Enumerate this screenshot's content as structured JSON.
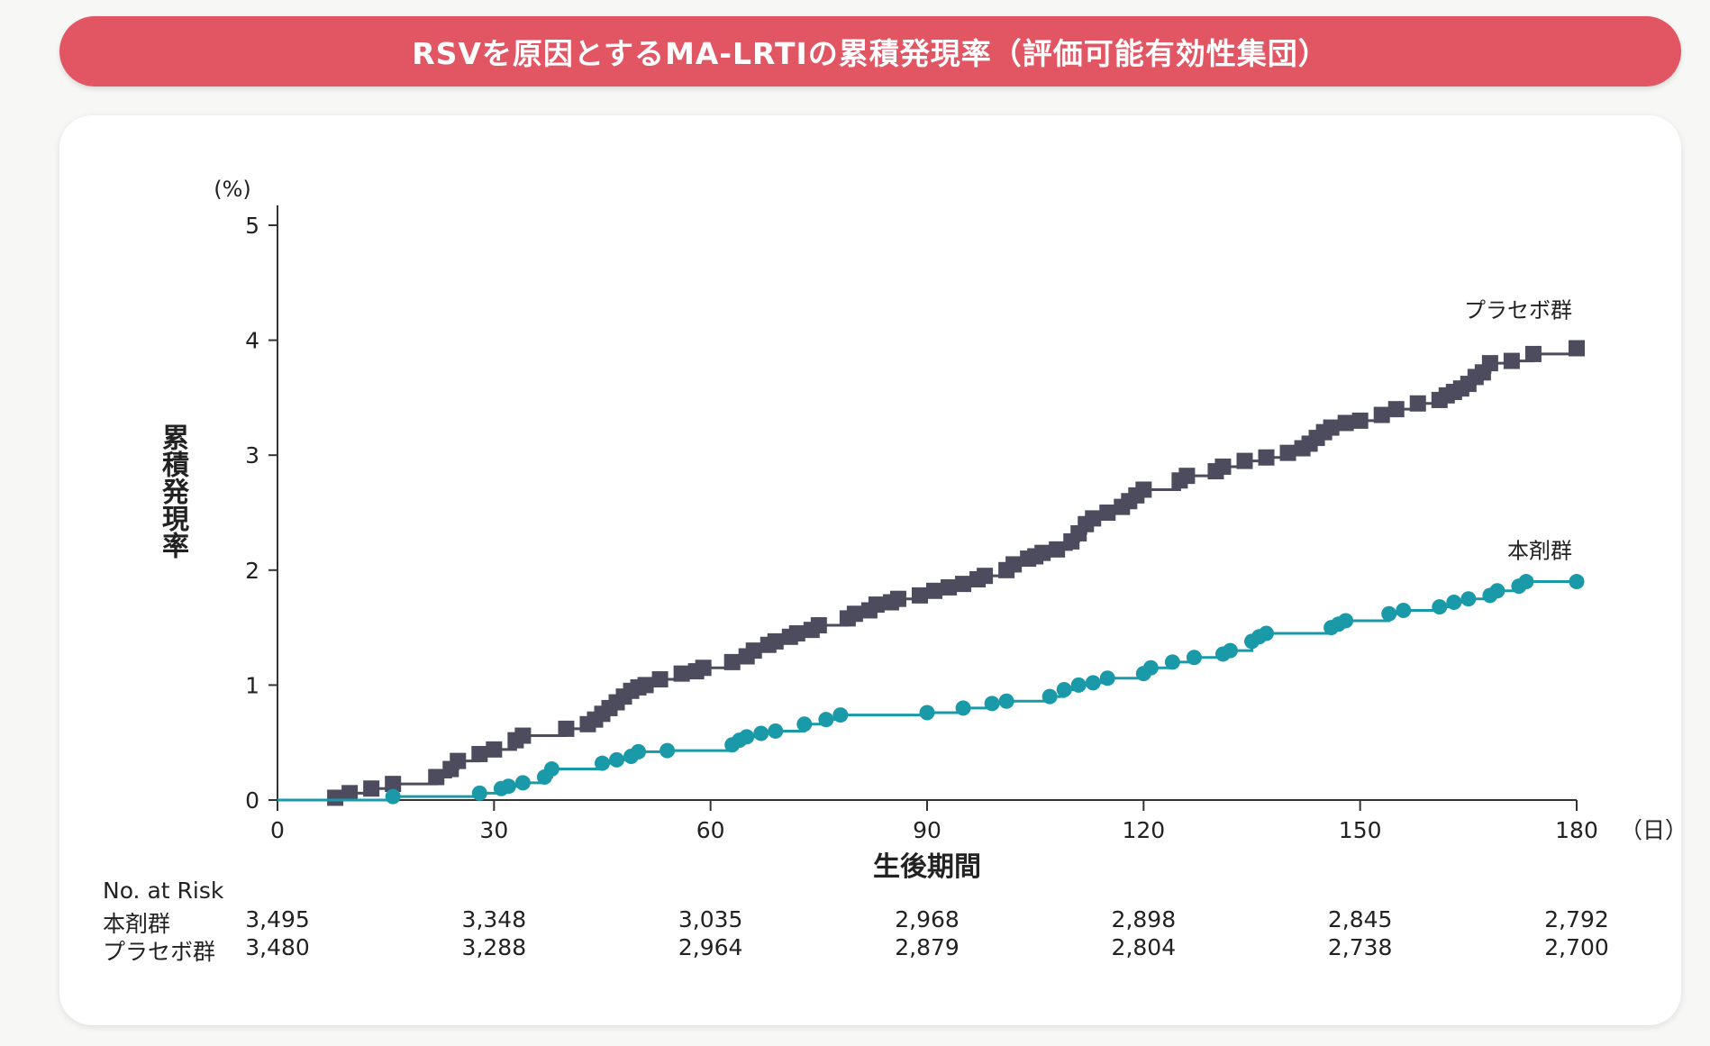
{
  "header": {
    "title": "RSVを原因とするMA-LRTIの累積発現率（評価可能有効性集団）"
  },
  "colors": {
    "banner": "#e25563",
    "treatment": "#1a9aa8",
    "placebo": "#4d4b5e",
    "axis": "#333333"
  },
  "chart_data": {
    "type": "line",
    "title": "RSVを原因とするMA-LRTIの累積発現率（評価可能有効性集団）",
    "xlabel": "生後期間",
    "xunit": "（日）",
    "ylabel": "累積発現率",
    "yunit": "(%)",
    "xlim": [
      0,
      180
    ],
    "ylim": [
      0,
      5
    ],
    "xticks": [
      0,
      30,
      60,
      90,
      120,
      150,
      180
    ],
    "yticks": [
      0,
      1,
      2,
      3,
      4,
      5
    ],
    "grid": false,
    "series": [
      {
        "name": "プラセボ群",
        "marker": "square",
        "points": [
          [
            8,
            0.02
          ],
          [
            10,
            0.06
          ],
          [
            13,
            0.1
          ],
          [
            16,
            0.14
          ],
          [
            22,
            0.2
          ],
          [
            24,
            0.27
          ],
          [
            25,
            0.34
          ],
          [
            28,
            0.4
          ],
          [
            30,
            0.44
          ],
          [
            33,
            0.52
          ],
          [
            34,
            0.56
          ],
          [
            40,
            0.62
          ],
          [
            43,
            0.66
          ],
          [
            44,
            0.7
          ],
          [
            45,
            0.75
          ],
          [
            46,
            0.8
          ],
          [
            47,
            0.85
          ],
          [
            48,
            0.9
          ],
          [
            49,
            0.95
          ],
          [
            50,
            0.98
          ],
          [
            51,
            1.0
          ],
          [
            53,
            1.05
          ],
          [
            56,
            1.1
          ],
          [
            58,
            1.12
          ],
          [
            59,
            1.15
          ],
          [
            63,
            1.2
          ],
          [
            65,
            1.25
          ],
          [
            66,
            1.3
          ],
          [
            68,
            1.35
          ],
          [
            69,
            1.38
          ],
          [
            71,
            1.42
          ],
          [
            72,
            1.45
          ],
          [
            74,
            1.48
          ],
          [
            75,
            1.52
          ],
          [
            79,
            1.58
          ],
          [
            80,
            1.62
          ],
          [
            82,
            1.65
          ],
          [
            83,
            1.7
          ],
          [
            85,
            1.72
          ],
          [
            86,
            1.75
          ],
          [
            89,
            1.78
          ],
          [
            91,
            1.82
          ],
          [
            93,
            1.85
          ],
          [
            95,
            1.88
          ],
          [
            97,
            1.92
          ],
          [
            98,
            1.95
          ],
          [
            101,
            2.0
          ],
          [
            102,
            2.05
          ],
          [
            104,
            2.1
          ],
          [
            105,
            2.12
          ],
          [
            106,
            2.15
          ],
          [
            108,
            2.18
          ],
          [
            110,
            2.25
          ],
          [
            111,
            2.32
          ],
          [
            112,
            2.4
          ],
          [
            113,
            2.45
          ],
          [
            115,
            2.5
          ],
          [
            117,
            2.55
          ],
          [
            118,
            2.6
          ],
          [
            119,
            2.65
          ],
          [
            120,
            2.7
          ],
          [
            125,
            2.78
          ],
          [
            126,
            2.82
          ],
          [
            130,
            2.86
          ],
          [
            131,
            2.9
          ],
          [
            134,
            2.95
          ],
          [
            137,
            2.98
          ],
          [
            140,
            3.02
          ],
          [
            142,
            3.06
          ],
          [
            143,
            3.1
          ],
          [
            144,
            3.15
          ],
          [
            145,
            3.2
          ],
          [
            146,
            3.24
          ],
          [
            148,
            3.28
          ],
          [
            150,
            3.3
          ],
          [
            153,
            3.35
          ],
          [
            155,
            3.4
          ],
          [
            158,
            3.45
          ],
          [
            161,
            3.48
          ],
          [
            162,
            3.52
          ],
          [
            163,
            3.55
          ],
          [
            164,
            3.58
          ],
          [
            165,
            3.62
          ],
          [
            166,
            3.68
          ],
          [
            167,
            3.72
          ],
          [
            168,
            3.8
          ],
          [
            171,
            3.82
          ],
          [
            174,
            3.88
          ],
          [
            180,
            3.93
          ]
        ]
      },
      {
        "name": "本剤群",
        "marker": "circle",
        "points": [
          [
            16,
            0.03
          ],
          [
            28,
            0.06
          ],
          [
            31,
            0.1
          ],
          [
            32,
            0.12
          ],
          [
            34,
            0.15
          ],
          [
            37,
            0.2
          ],
          [
            38,
            0.27
          ],
          [
            45,
            0.32
          ],
          [
            47,
            0.35
          ],
          [
            49,
            0.38
          ],
          [
            50,
            0.42
          ],
          [
            54,
            0.43
          ],
          [
            63,
            0.48
          ],
          [
            64,
            0.52
          ],
          [
            65,
            0.55
          ],
          [
            67,
            0.58
          ],
          [
            69,
            0.6
          ],
          [
            73,
            0.66
          ],
          [
            76,
            0.7
          ],
          [
            78,
            0.74
          ],
          [
            90,
            0.76
          ],
          [
            95,
            0.8
          ],
          [
            99,
            0.84
          ],
          [
            101,
            0.86
          ],
          [
            107,
            0.9
          ],
          [
            109,
            0.96
          ],
          [
            111,
            1.0
          ],
          [
            113,
            1.02
          ],
          [
            115,
            1.06
          ],
          [
            120,
            1.1
          ],
          [
            121,
            1.15
          ],
          [
            124,
            1.2
          ],
          [
            127,
            1.24
          ],
          [
            131,
            1.27
          ],
          [
            132,
            1.3
          ],
          [
            135,
            1.38
          ],
          [
            136,
            1.42
          ],
          [
            137,
            1.45
          ],
          [
            146,
            1.5
          ],
          [
            147,
            1.53
          ],
          [
            148,
            1.56
          ],
          [
            154,
            1.62
          ],
          [
            156,
            1.65
          ],
          [
            161,
            1.68
          ],
          [
            163,
            1.72
          ],
          [
            165,
            1.75
          ],
          [
            168,
            1.78
          ],
          [
            169,
            1.82
          ],
          [
            172,
            1.86
          ],
          [
            173,
            1.9
          ],
          [
            180,
            1.9
          ]
        ]
      }
    ]
  },
  "risk_table": {
    "title": "No.  at  Risk",
    "x": [
      0,
      30,
      60,
      90,
      120,
      150,
      180
    ],
    "rows": [
      {
        "label": "本剤群",
        "values": [
          "3,495",
          "3,348",
          "3,035",
          "2,968",
          "2,898",
          "2,845",
          "2,792"
        ]
      },
      {
        "label": "プラセボ群",
        "values": [
          "3,480",
          "3,288",
          "2,964",
          "2,879",
          "2,804",
          "2,738",
          "2,700"
        ]
      }
    ]
  }
}
